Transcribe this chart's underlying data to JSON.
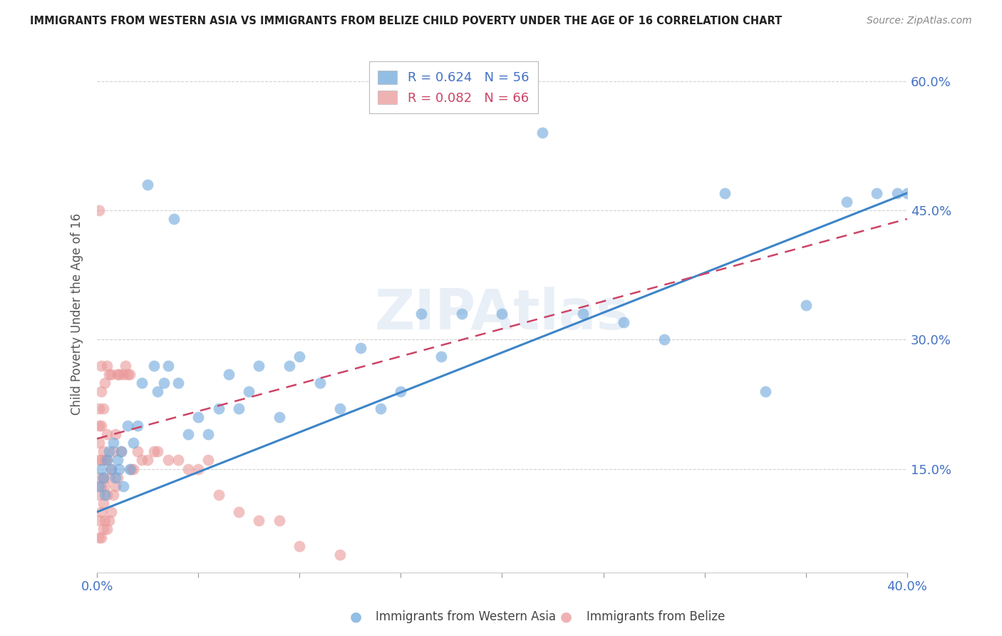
{
  "title": "IMMIGRANTS FROM WESTERN ASIA VS IMMIGRANTS FROM BELIZE CHILD POVERTY UNDER THE AGE OF 16 CORRELATION CHART",
  "source": "Source: ZipAtlas.com",
  "ylabel": "Child Poverty Under the Age of 16",
  "x_min": 0.0,
  "x_max": 0.4,
  "y_min": 0.03,
  "y_max": 0.63,
  "yticks": [
    0.15,
    0.3,
    0.45,
    0.6
  ],
  "ytick_labels": [
    "15.0%",
    "30.0%",
    "45.0%",
    "60.0%"
  ],
  "legend_R1": "0.624",
  "legend_N1": "56",
  "legend_R2": "0.082",
  "legend_N2": "66",
  "label1": "Immigrants from Western Asia",
  "label2": "Immigrants from Belize",
  "color1": "#6fa8dc",
  "color2": "#ea9999",
  "trendline_color1": "#3d85c8",
  "trendline_color2": "#cc4466",
  "watermark": "ZIPAtlas",
  "background_color": "#ffffff",
  "blue_x": [
    0.001,
    0.002,
    0.003,
    0.004,
    0.005,
    0.006,
    0.007,
    0.008,
    0.009,
    0.01,
    0.011,
    0.012,
    0.013,
    0.015,
    0.016,
    0.018,
    0.02,
    0.022,
    0.025,
    0.028,
    0.03,
    0.033,
    0.035,
    0.038,
    0.04,
    0.045,
    0.05,
    0.055,
    0.06,
    0.065,
    0.07,
    0.075,
    0.08,
    0.09,
    0.095,
    0.1,
    0.11,
    0.12,
    0.13,
    0.14,
    0.15,
    0.16,
    0.17,
    0.18,
    0.2,
    0.22,
    0.24,
    0.26,
    0.28,
    0.31,
    0.33,
    0.35,
    0.37,
    0.385,
    0.395,
    0.4
  ],
  "blue_y": [
    0.13,
    0.15,
    0.14,
    0.12,
    0.16,
    0.17,
    0.15,
    0.18,
    0.14,
    0.16,
    0.15,
    0.17,
    0.13,
    0.2,
    0.15,
    0.18,
    0.2,
    0.25,
    0.48,
    0.27,
    0.24,
    0.25,
    0.27,
    0.44,
    0.25,
    0.19,
    0.21,
    0.19,
    0.22,
    0.26,
    0.22,
    0.24,
    0.27,
    0.21,
    0.27,
    0.28,
    0.25,
    0.22,
    0.29,
    0.22,
    0.24,
    0.33,
    0.28,
    0.33,
    0.33,
    0.54,
    0.33,
    0.32,
    0.3,
    0.47,
    0.24,
    0.34,
    0.46,
    0.47,
    0.47,
    0.47
  ],
  "pink_x": [
    0.001,
    0.001,
    0.001,
    0.001,
    0.001,
    0.001,
    0.001,
    0.001,
    0.001,
    0.002,
    0.002,
    0.002,
    0.002,
    0.002,
    0.002,
    0.002,
    0.003,
    0.003,
    0.003,
    0.003,
    0.003,
    0.004,
    0.004,
    0.004,
    0.004,
    0.005,
    0.005,
    0.005,
    0.005,
    0.005,
    0.006,
    0.006,
    0.006,
    0.007,
    0.007,
    0.007,
    0.008,
    0.008,
    0.009,
    0.009,
    0.01,
    0.01,
    0.011,
    0.012,
    0.013,
    0.014,
    0.015,
    0.016,
    0.017,
    0.018,
    0.02,
    0.022,
    0.025,
    0.028,
    0.03,
    0.035,
    0.04,
    0.045,
    0.05,
    0.055,
    0.06,
    0.07,
    0.08,
    0.09,
    0.1,
    0.12
  ],
  "pink_y": [
    0.07,
    0.09,
    0.12,
    0.14,
    0.16,
    0.18,
    0.2,
    0.22,
    0.45,
    0.07,
    0.1,
    0.13,
    0.16,
    0.2,
    0.24,
    0.27,
    0.08,
    0.11,
    0.14,
    0.17,
    0.22,
    0.09,
    0.13,
    0.16,
    0.25,
    0.08,
    0.12,
    0.16,
    0.19,
    0.27,
    0.09,
    0.14,
    0.26,
    0.1,
    0.15,
    0.26,
    0.12,
    0.17,
    0.13,
    0.19,
    0.14,
    0.26,
    0.26,
    0.17,
    0.26,
    0.27,
    0.26,
    0.26,
    0.15,
    0.15,
    0.17,
    0.16,
    0.16,
    0.17,
    0.17,
    0.16,
    0.16,
    0.15,
    0.15,
    0.16,
    0.12,
    0.1,
    0.09,
    0.09,
    0.06,
    0.05
  ],
  "blue_trend_x0": 0.0,
  "blue_trend_y0": 0.1,
  "blue_trend_x1": 0.4,
  "blue_trend_y1": 0.47,
  "pink_trend_x0": 0.0,
  "pink_trend_y0": 0.185,
  "pink_trend_x1": 0.4,
  "pink_trend_y1": 0.44
}
